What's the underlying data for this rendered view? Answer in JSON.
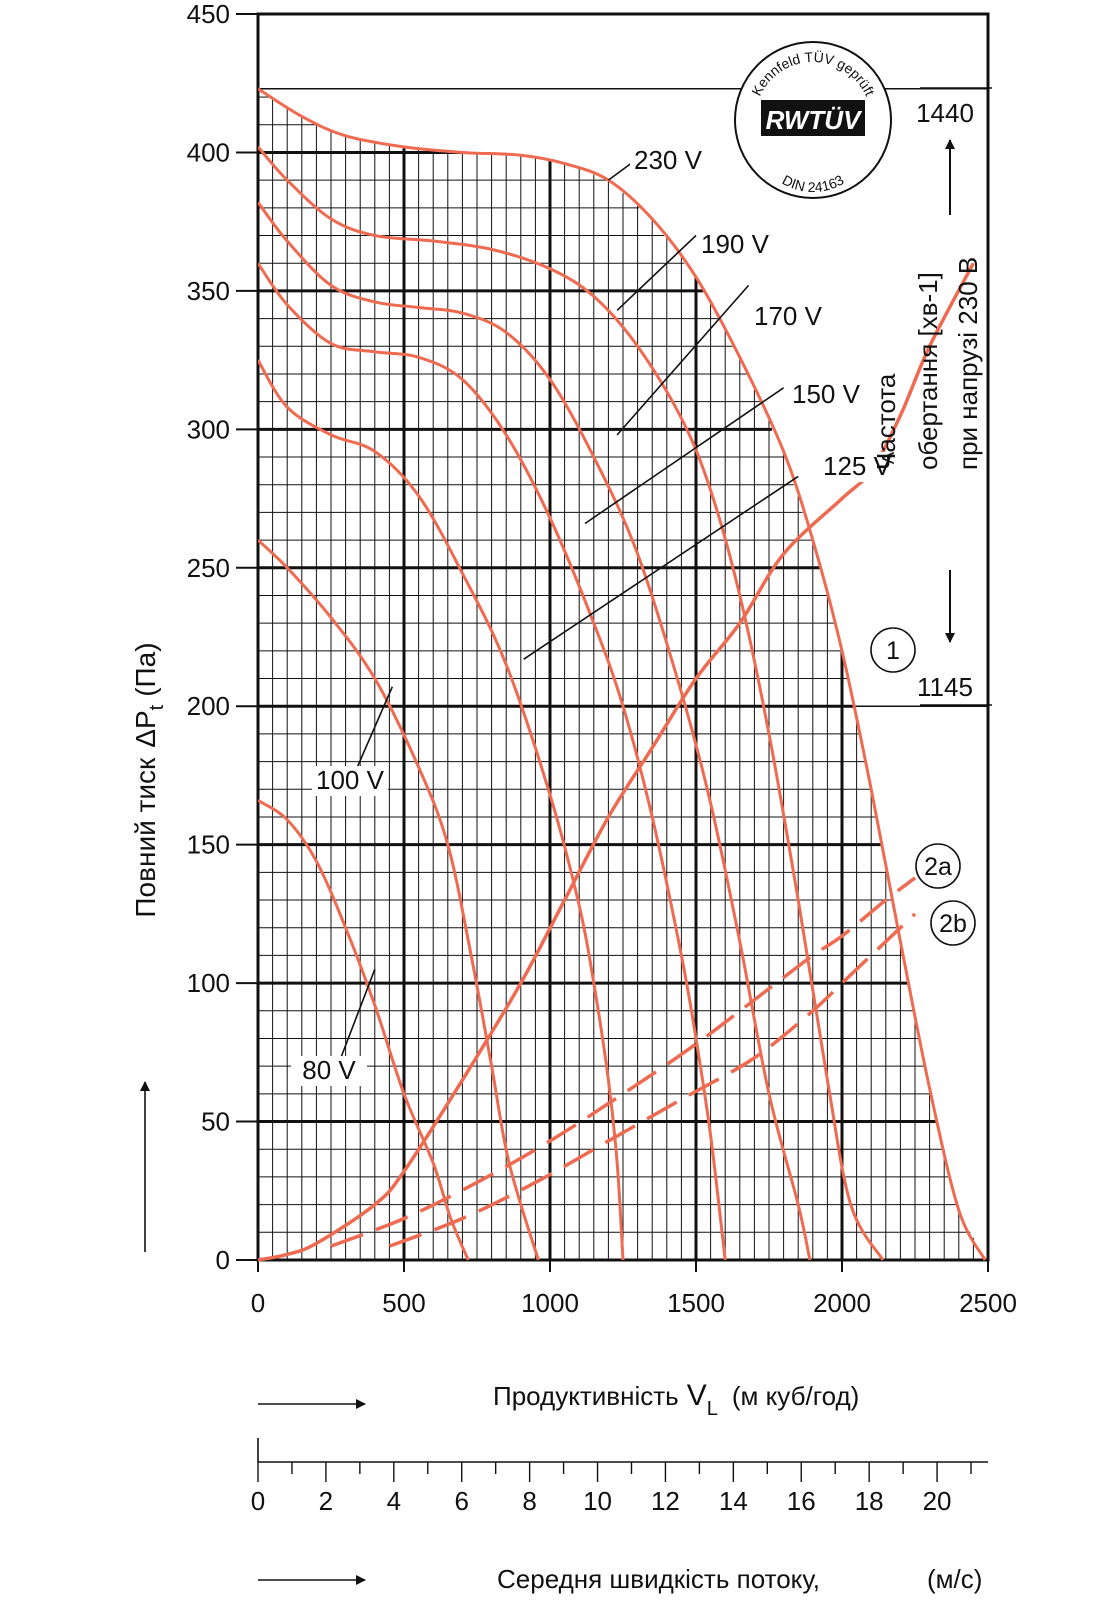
{
  "chart_data": {
    "type": "line",
    "title": "",
    "xlabel": "Продуктивність",
    "xlabel_symbol": "V",
    "xlabel_symbol_sub": "L",
    "xlabel_unit": "(м куб/год)",
    "ylabel": "Повний тиск",
    "ylabel_symbol": "ΔP",
    "ylabel_symbol_sub": "t",
    "ylabel_unit": "(Па)",
    "xlim": [
      0,
      2500
    ],
    "ylim": [
      0,
      450
    ],
    "x_ticks": [
      "0",
      "500",
      "1000",
      "1500",
      "2000",
      "2500"
    ],
    "y_ticks": [
      "0",
      "50",
      "100",
      "150",
      "200",
      "250",
      "300",
      "350",
      "400",
      "450"
    ],
    "grid": true,
    "curve_color": "#ee6a50",
    "series": [
      {
        "name": "230 V",
        "label_leader": [
          [
            1200,
            390
          ],
          [
            1290,
            397
          ]
        ],
        "points": [
          [
            0,
            423
          ],
          [
            150,
            413
          ],
          [
            300,
            406
          ],
          [
            500,
            402
          ],
          [
            700,
            400
          ],
          [
            900,
            399
          ],
          [
            1050,
            396
          ],
          [
            1200,
            390
          ],
          [
            1350,
            376
          ],
          [
            1500,
            355
          ],
          [
            1650,
            326
          ],
          [
            1800,
            292
          ],
          [
            1900,
            260
          ],
          [
            2000,
            220
          ],
          [
            2100,
            170
          ],
          [
            2200,
            115
          ],
          [
            2300,
            62
          ],
          [
            2400,
            18
          ],
          [
            2490,
            0
          ]
        ]
      },
      {
        "name": "190 V",
        "label_leader": [
          [
            1230,
            343
          ],
          [
            1500,
            370
          ]
        ],
        "points": [
          [
            0,
            402
          ],
          [
            100,
            390
          ],
          [
            250,
            376
          ],
          [
            400,
            370
          ],
          [
            600,
            368
          ],
          [
            800,
            365
          ],
          [
            1000,
            358
          ],
          [
            1150,
            348
          ],
          [
            1300,
            330
          ],
          [
            1450,
            304
          ],
          [
            1550,
            278
          ],
          [
            1650,
            240
          ],
          [
            1750,
            190
          ],
          [
            1850,
            130
          ],
          [
            1950,
            65
          ],
          [
            2030,
            20
          ],
          [
            2140,
            0
          ]
        ]
      },
      {
        "name": "170 V",
        "label_leader": [
          [
            1230,
            298
          ],
          [
            1680,
            352
          ]
        ],
        "points": [
          [
            0,
            382
          ],
          [
            100,
            368
          ],
          [
            250,
            352
          ],
          [
            400,
            346
          ],
          [
            550,
            344
          ],
          [
            700,
            342
          ],
          [
            850,
            335
          ],
          [
            1000,
            318
          ],
          [
            1150,
            290
          ],
          [
            1300,
            255
          ],
          [
            1450,
            205
          ],
          [
            1550,
            165
          ],
          [
            1650,
            115
          ],
          [
            1750,
            60
          ],
          [
            1850,
            20
          ],
          [
            1890,
            0
          ]
        ]
      },
      {
        "name": "150 V",
        "label_leader": [
          [
            1120,
            266
          ],
          [
            1800,
            315
          ]
        ],
        "points": [
          [
            0,
            360
          ],
          [
            100,
            345
          ],
          [
            250,
            331
          ],
          [
            400,
            328
          ],
          [
            550,
            326
          ],
          [
            700,
            318
          ],
          [
            850,
            298
          ],
          [
            1000,
            268
          ],
          [
            1150,
            230
          ],
          [
            1250,
            200
          ],
          [
            1350,
            160
          ],
          [
            1450,
            110
          ],
          [
            1500,
            80
          ],
          [
            1550,
            45
          ],
          [
            1600,
            0
          ]
        ]
      },
      {
        "name": "125 V",
        "label_leader": [
          [
            910,
            217
          ],
          [
            1850,
            283
          ]
        ],
        "points": [
          [
            0,
            325
          ],
          [
            100,
            308
          ],
          [
            250,
            298
          ],
          [
            400,
            292
          ],
          [
            550,
            276
          ],
          [
            700,
            248
          ],
          [
            850,
            215
          ],
          [
            1000,
            168
          ],
          [
            1100,
            128
          ],
          [
            1150,
            100
          ],
          [
            1200,
            65
          ],
          [
            1230,
            35
          ],
          [
            1250,
            0
          ]
        ]
      },
      {
        "name": "100 V",
        "label_leader": [
          [
            460,
            207
          ],
          [
            340,
            178
          ]
        ],
        "points": [
          [
            0,
            260
          ],
          [
            100,
            250
          ],
          [
            250,
            232
          ],
          [
            400,
            210
          ],
          [
            550,
            178
          ],
          [
            650,
            150
          ],
          [
            730,
            110
          ],
          [
            800,
            70
          ],
          [
            860,
            35
          ],
          [
            960,
            0
          ]
        ]
      },
      {
        "name": "80 V",
        "label_leader": [
          [
            400,
            105
          ],
          [
            280,
            72
          ]
        ],
        "points": [
          [
            0,
            166
          ],
          [
            100,
            159
          ],
          [
            200,
            144
          ],
          [
            300,
            120
          ],
          [
            400,
            92
          ],
          [
            500,
            60
          ],
          [
            600,
            35
          ],
          [
            660,
            15
          ],
          [
            720,
            0
          ]
        ]
      }
    ],
    "system_curves": [
      {
        "name": "1",
        "style": "solid",
        "points": [
          [
            0,
            0
          ],
          [
            100,
            2
          ],
          [
            200,
            6
          ],
          [
            400,
            20
          ],
          [
            500,
            32
          ],
          [
            700,
            65
          ],
          [
            900,
            100
          ],
          [
            1050,
            130
          ],
          [
            1200,
            160
          ],
          [
            1350,
            185
          ],
          [
            1500,
            210
          ],
          [
            1650,
            230
          ],
          [
            1800,
            255
          ],
          [
            2000,
            275
          ],
          [
            2100,
            285
          ],
          [
            2200,
            305
          ],
          [
            2300,
            330
          ],
          [
            2450,
            360
          ]
        ]
      },
      {
        "name": "2a",
        "style": "dashed",
        "points": [
          [
            250,
            5
          ],
          [
            500,
            15
          ],
          [
            750,
            28
          ],
          [
            1000,
            43
          ],
          [
            1250,
            60
          ],
          [
            1500,
            78
          ],
          [
            1750,
            98
          ],
          [
            1900,
            110
          ],
          [
            2000,
            117
          ],
          [
            2150,
            130
          ],
          [
            2250,
            138
          ]
        ]
      },
      {
        "name": "2b",
        "style": "dashed",
        "points": [
          [
            450,
            5
          ],
          [
            700,
            15
          ],
          [
            950,
            28
          ],
          [
            1200,
            43
          ],
          [
            1450,
            58
          ],
          [
            1700,
            73
          ],
          [
            1900,
            90
          ],
          [
            2000,
            100
          ],
          [
            2100,
            110
          ],
          [
            2250,
            125
          ]
        ]
      }
    ],
    "rpm_axis": {
      "label_line1": "Частота",
      "label_line2": "обертання [хв-1]",
      "label_line3": "при напрузі 230 В",
      "max": "1440",
      "min": "1145",
      "y_max": 423,
      "y_min": 200
    },
    "velocity_axis": {
      "label": "Середня швидкість потоку,",
      "unit": "(м/с)",
      "ticks": [
        "0",
        "2",
        "4",
        "6",
        "8",
        "10",
        "12",
        "14",
        "16",
        "18",
        "20"
      ],
      "max": 21.5
    },
    "certification_seal": {
      "brand": "RWTÜV",
      "arc_top": "Kennfeld TÜV geprüft",
      "arc_bottom": "DIN 24163"
    }
  }
}
